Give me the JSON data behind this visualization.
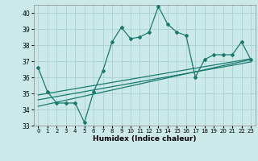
{
  "title": "",
  "xlabel": "Humidex (Indice chaleur)",
  "xlim": [
    -0.5,
    23.5
  ],
  "ylim": [
    33,
    40.5
  ],
  "yticks": [
    33,
    34,
    35,
    36,
    37,
    38,
    39,
    40
  ],
  "xticks": [
    0,
    1,
    2,
    3,
    4,
    5,
    6,
    7,
    8,
    9,
    10,
    11,
    12,
    13,
    14,
    15,
    16,
    17,
    18,
    19,
    20,
    21,
    22,
    23
  ],
  "bg_color": "#cce9e9",
  "grid_color": "#aed4d4",
  "line_color": "#1a7a6e",
  "line1_x": [
    0,
    1,
    2,
    3,
    4,
    5,
    6,
    7,
    8,
    9,
    10,
    11,
    12,
    13,
    14,
    15,
    16,
    17,
    18,
    19,
    20,
    21,
    22,
    23
  ],
  "line1_y": [
    36.6,
    35.1,
    34.4,
    34.4,
    34.4,
    33.2,
    35.1,
    36.4,
    38.2,
    39.1,
    38.4,
    38.5,
    38.8,
    40.4,
    39.3,
    38.8,
    38.6,
    36.0,
    37.1,
    37.4,
    37.4,
    37.4,
    38.2,
    37.1
  ],
  "line2_x": [
    0,
    23
  ],
  "line2_y": [
    34.2,
    37.1
  ],
  "line3_x": [
    0,
    23
  ],
  "line3_y": [
    34.6,
    36.95
  ],
  "line4_x": [
    0,
    23
  ],
  "line4_y": [
    34.9,
    37.15
  ]
}
